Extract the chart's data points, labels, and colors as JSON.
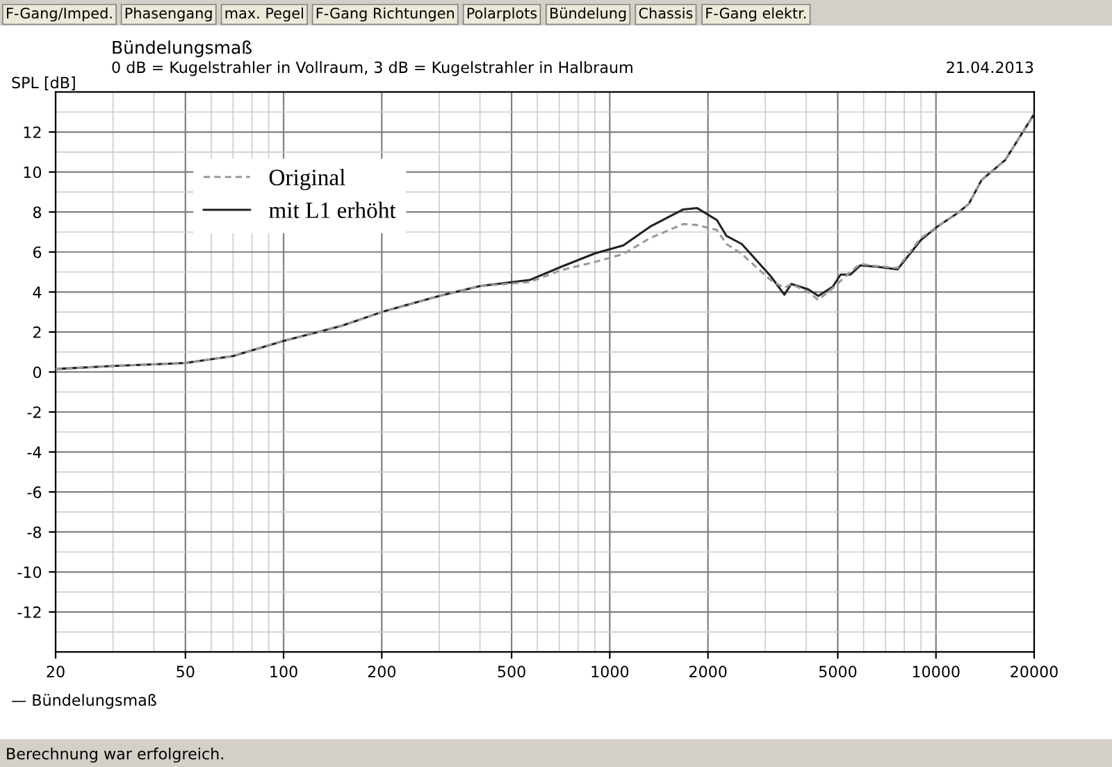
{
  "chart_data": {
    "type": "line",
    "title": "Bündelungsmaß",
    "subtitle": "0 dB = Kugelstrahler in Vollraum, 3 dB = Kugelstrahler in Halbraum",
    "ylabel": "SPL [dB]",
    "log": "x",
    "grid": true,
    "legend": "top left",
    "xlim": [
      20,
      20000
    ],
    "xticks": [
      20,
      50,
      100,
      200,
      500,
      1000,
      2000,
      5000,
      10000,
      20000
    ],
    "ylim": [
      -14,
      14
    ],
    "yticks": [
      -12,
      -10,
      -8,
      -6,
      -4,
      -2,
      0,
      2,
      4,
      6,
      8,
      10,
      12
    ],
    "annotations": [
      "21.04.2013",
      "— Bündelungsmaß",
      "Berechnung war erfolgreich.",
      "F-Gang/Imped.",
      "Phasengang",
      "max. Pegel",
      "F-Gang Richtungen",
      "Polarplots",
      "Bündelung",
      "Chassis",
      "F-Gang elektr."
    ],
    "series": [
      {
        "name": "Original",
        "color": "#999999",
        "line_style": "dashed",
        "x": [
          20,
          30,
          50,
          70,
          100,
          150,
          200,
          300,
          400,
          568,
          712,
          900,
          1100,
          1330,
          1680,
          1850,
          2130,
          2280,
          2540,
          3110,
          3430,
          3600,
          4060,
          4360,
          4830,
          5460,
          5860,
          6540,
          7620,
          8990,
          10100,
          11600,
          12600,
          13800,
          16300,
          20000
        ],
        "values": [
          0.15,
          0.3,
          0.45,
          0.8,
          1.55,
          2.3,
          3.0,
          3.8,
          4.3,
          4.5,
          5.1,
          5.5,
          5.9,
          6.7,
          7.4,
          7.35,
          7.1,
          6.4,
          5.9,
          4.6,
          4.2,
          4.4,
          4.0,
          3.6,
          4.2,
          5.0,
          5.4,
          5.3,
          5.2,
          6.7,
          7.27,
          7.93,
          8.4,
          9.6,
          10.6,
          12.9
        ]
      },
      {
        "name": "mit L1 erhöht",
        "color": "#222222",
        "line_style": "solid",
        "x": [
          20,
          30,
          50,
          70,
          100,
          150,
          200,
          300,
          400,
          568,
          712,
          900,
          1100,
          1330,
          1680,
          1850,
          2130,
          2280,
          2540,
          3110,
          3430,
          3600,
          4060,
          4360,
          4830,
          5100,
          5460,
          5860,
          6540,
          7620,
          8990,
          10100,
          11600,
          12600,
          13800,
          16300,
          20000
        ],
        "values": [
          0.15,
          0.3,
          0.45,
          0.8,
          1.55,
          2.3,
          3.0,
          3.8,
          4.3,
          4.6,
          5.27,
          5.93,
          6.33,
          7.27,
          8.13,
          8.2,
          7.6,
          6.8,
          6.4,
          4.8,
          3.87,
          4.4,
          4.13,
          3.8,
          4.27,
          4.87,
          4.87,
          5.33,
          5.27,
          5.13,
          6.6,
          7.27,
          7.93,
          8.4,
          9.6,
          10.6,
          12.9
        ]
      }
    ]
  }
}
